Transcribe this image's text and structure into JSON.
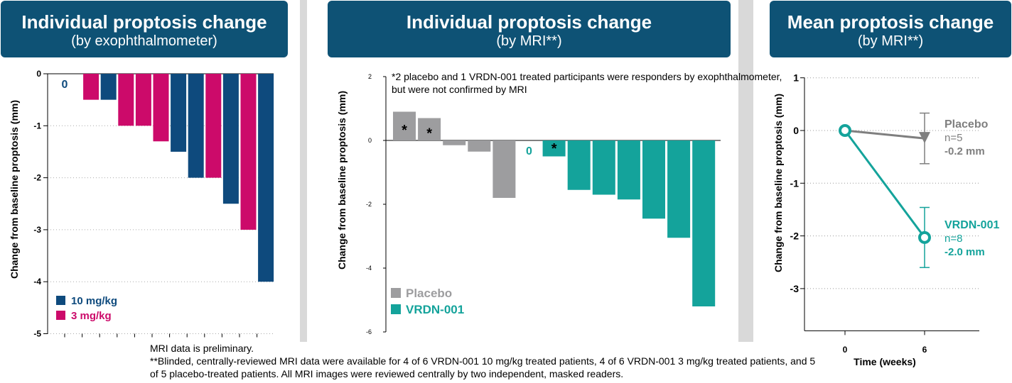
{
  "banners": [
    {
      "title": "Individual proptosis change",
      "subtitle": "(by exophthalmometer)"
    },
    {
      "title": "Individual proptosis change",
      "subtitle": "(by MRI**)"
    },
    {
      "title": "Mean proptosis change",
      "subtitle": "(by MRI**)"
    }
  ],
  "colors": {
    "banner": "#0e5275",
    "dose_10mg": "#0e4a7d",
    "dose_3mg": "#cc0a6a",
    "placebo": "#9d9d9f",
    "vrdn": "#14a39b"
  },
  "footnotes": {
    "line1": "MRI data is preliminary.",
    "line2": "**Blinded, centrally-reviewed MRI data were available for 4 of 6 VRDN-001 10 mg/kg treated patients, 4 of 6 VRDN-001 3 mg/kg treated patients, and 5 of 5 placebo-treated patients. All MRI images were reviewed centrally by two independent, masked readers."
  },
  "chart_data": [
    {
      "type": "bar",
      "title": "Individual proptosis change",
      "subtitle": "(by exophthalmometer)",
      "ylabel": "Change from baseline proptosis (mm)",
      "xlabel": "",
      "ylim": [
        -5,
        0
      ],
      "yticks": [
        "0",
        "-1",
        "-2",
        "-3",
        "-4",
        "-5"
      ],
      "grid": "dotted horizontal",
      "values": [
        0,
        -0.5,
        -0.5,
        -1.0,
        -1.0,
        -1.3,
        -1.5,
        -2.0,
        -2.0,
        -2.5,
        -3.0,
        -4.0
      ],
      "groups": [
        "10 mg/kg",
        "3 mg/kg",
        "10 mg/kg",
        "3 mg/kg",
        "3 mg/kg",
        "3 mg/kg",
        "10 mg/kg",
        "10 mg/kg",
        "3 mg/kg",
        "10 mg/kg",
        "3 mg/kg",
        "10 mg/kg"
      ],
      "zero_label": "0",
      "legend": [
        {
          "name": "10 mg/kg",
          "color": "#0e4a7d"
        },
        {
          "name": "3 mg/kg",
          "color": "#cc0a6a"
        }
      ],
      "legend_position": "bottom-left"
    },
    {
      "type": "bar",
      "title": "Individual proptosis change",
      "subtitle": "(by MRI**)",
      "ylabel": "Change from baseline proptosis (mm)",
      "xlabel": "",
      "ylim": [
        -6,
        2
      ],
      "yticks": [
        "2",
        "0",
        "-2",
        "-4",
        "-6"
      ],
      "note": "*2 placebo and 1 VRDN-001 treated participants were responders by exophthalmometer, but were not confirmed by MRI",
      "values": [
        0.9,
        0.7,
        -0.15,
        -0.35,
        -1.8,
        0,
        -0.5,
        -1.55,
        -1.7,
        -1.85,
        -2.45,
        -3.05,
        -5.2
      ],
      "groups": [
        "Placebo",
        "Placebo",
        "Placebo",
        "Placebo",
        "Placebo",
        "VRDN-001",
        "VRDN-001",
        "VRDN-001",
        "VRDN-001",
        "VRDN-001",
        "VRDN-001",
        "VRDN-001",
        "VRDN-001"
      ],
      "asterisks": [
        true,
        true,
        false,
        false,
        false,
        false,
        true,
        false,
        false,
        false,
        false,
        false,
        false
      ],
      "asterisk_label": "*",
      "zero_label": "0",
      "legend": [
        {
          "name": "Placebo",
          "color": "#9d9d9f"
        },
        {
          "name": "VRDN-001",
          "color": "#14a39b"
        }
      ],
      "legend_position": "bottom-left"
    },
    {
      "type": "line",
      "title": "Mean proptosis change",
      "subtitle": "(by MRI**)",
      "ylabel": "Change from baseline proptosis (mm)",
      "xlabel": "Time (weeks)",
      "x": [
        0,
        6
      ],
      "xticks": [
        "0",
        "6"
      ],
      "ylim": [
        -3.8,
        1
      ],
      "yticks": [
        "1",
        "0",
        "-1",
        "-2",
        "-3"
      ],
      "grid": "dotted horizontal",
      "series": [
        {
          "name": "Placebo",
          "n_label": "n=5",
          "change_label": "-0.2 mm",
          "values": [
            0,
            -0.15
          ],
          "error": [
            0,
            0.48
          ],
          "color": "#7f7f7f",
          "marker": "triangle"
        },
        {
          "name": "VRDN-001",
          "n_label": "n=8",
          "change_label": "-2.0 mm",
          "values": [
            0,
            -2.03
          ],
          "error": [
            0,
            0.57
          ],
          "color": "#14a39b",
          "marker": "circle"
        }
      ]
    }
  ]
}
